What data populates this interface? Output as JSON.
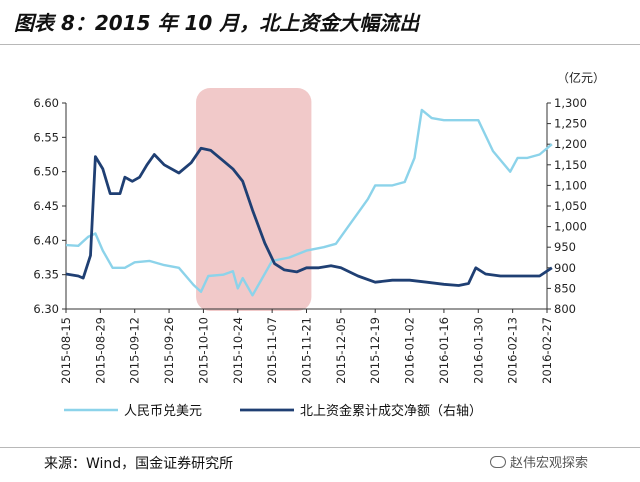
{
  "header": {
    "title": "图表 8：2015 年 10 月，北上资金大幅流出"
  },
  "footer": {
    "source": "来源：Wind，国金证券研究所",
    "watermark": "赵伟宏观探索"
  },
  "colors": {
    "left_series": "#8cd3ea",
    "right_series": "#1f3f73",
    "shade": "#eebcbc",
    "axis": "#333333"
  },
  "chart_data": {
    "type": "line",
    "title": "",
    "highlight_region": {
      "x_start": "2015-10-07",
      "x_end": "2015-11-23"
    },
    "y_left": {
      "ticks": [
        "6.60",
        "6.55",
        "6.50",
        "6.45",
        "6.40",
        "6.35",
        "6.30"
      ],
      "min": 6.3,
      "max": 6.6
    },
    "y_right": {
      "unit": "（亿元）",
      "ticks": [
        "1,300",
        "1,250",
        "1,200",
        "1,150",
        "1,100",
        "1,050",
        "1,000",
        "950",
        "900",
        "850",
        "800"
      ],
      "min": 800,
      "max": 1300
    },
    "x_ticks": [
      "2015-08-15",
      "2015-08-29",
      "2015-09-12",
      "2015-09-26",
      "2015-10-10",
      "2015-10-24",
      "2015-11-07",
      "2015-11-21",
      "2015-12-05",
      "2015-12-19",
      "2016-01-02",
      "2016-01-16",
      "2016-01-30",
      "2016-02-13",
      "2016-02-27"
    ],
    "legend": [
      "人民币兑美元",
      "北上资金累计成交净额（右轴）"
    ],
    "series": [
      {
        "name": "人民币兑美元",
        "axis": "left",
        "points": [
          [
            "2015-08-15",
            6.393
          ],
          [
            "2015-08-20",
            6.392
          ],
          [
            "2015-08-24",
            6.405
          ],
          [
            "2015-08-27",
            6.41
          ],
          [
            "2015-08-30",
            6.385
          ],
          [
            "2015-09-03",
            6.36
          ],
          [
            "2015-09-08",
            6.36
          ],
          [
            "2015-09-12",
            6.368
          ],
          [
            "2015-09-18",
            6.37
          ],
          [
            "2015-09-24",
            6.364
          ],
          [
            "2015-09-30",
            6.36
          ],
          [
            "2015-10-06",
            6.335
          ],
          [
            "2015-10-09",
            6.325
          ],
          [
            "2015-10-12",
            6.348
          ],
          [
            "2015-10-18",
            6.35
          ],
          [
            "2015-10-22",
            6.355
          ],
          [
            "2015-10-24",
            6.33
          ],
          [
            "2015-10-26",
            6.345
          ],
          [
            "2015-10-30",
            6.32
          ],
          [
            "2015-11-03",
            6.345
          ],
          [
            "2015-11-07",
            6.37
          ],
          [
            "2015-11-14",
            6.375
          ],
          [
            "2015-11-21",
            6.385
          ],
          [
            "2015-11-28",
            6.39
          ],
          [
            "2015-12-03",
            6.395
          ],
          [
            "2015-12-08",
            6.42
          ],
          [
            "2015-12-12",
            6.44
          ],
          [
            "2015-12-16",
            6.46
          ],
          [
            "2015-12-19",
            6.48
          ],
          [
            "2015-12-26",
            6.48
          ],
          [
            "2015-12-31",
            6.485
          ],
          [
            "2016-01-04",
            6.52
          ],
          [
            "2016-01-07",
            6.59
          ],
          [
            "2016-01-11",
            6.578
          ],
          [
            "2016-01-16",
            6.575
          ],
          [
            "2016-01-22",
            6.575
          ],
          [
            "2016-01-27",
            6.575
          ],
          [
            "2016-01-30",
            6.575
          ],
          [
            "2016-02-05",
            6.53
          ],
          [
            "2016-02-12",
            6.5
          ],
          [
            "2016-02-15",
            6.52
          ],
          [
            "2016-02-19",
            6.52
          ],
          [
            "2016-02-24",
            6.525
          ],
          [
            "2016-02-29",
            6.54
          ]
        ]
      },
      {
        "name": "北上资金累计成交净额（右轴）",
        "axis": "right",
        "points": [
          [
            "2015-08-15",
            885
          ],
          [
            "2015-08-20",
            880
          ],
          [
            "2015-08-22",
            875
          ],
          [
            "2015-08-25",
            930
          ],
          [
            "2015-08-27",
            1170
          ],
          [
            "2015-08-30",
            1140
          ],
          [
            "2015-09-02",
            1080
          ],
          [
            "2015-09-06",
            1080
          ],
          [
            "2015-09-08",
            1120
          ],
          [
            "2015-09-11",
            1110
          ],
          [
            "2015-09-14",
            1120
          ],
          [
            "2015-09-17",
            1150
          ],
          [
            "2015-09-20",
            1175
          ],
          [
            "2015-09-24",
            1150
          ],
          [
            "2015-09-30",
            1130
          ],
          [
            "2015-10-05",
            1155
          ],
          [
            "2015-10-09",
            1190
          ],
          [
            "2015-10-13",
            1185
          ],
          [
            "2015-10-18",
            1160
          ],
          [
            "2015-10-22",
            1140
          ],
          [
            "2015-10-26",
            1110
          ],
          [
            "2015-10-30",
            1040
          ],
          [
            "2015-11-04",
            960
          ],
          [
            "2015-11-08",
            910
          ],
          [
            "2015-11-12",
            895
          ],
          [
            "2015-11-17",
            890
          ],
          [
            "2015-11-21",
            900
          ],
          [
            "2015-11-26",
            900
          ],
          [
            "2015-12-01",
            905
          ],
          [
            "2015-12-05",
            900
          ],
          [
            "2015-12-12",
            880
          ],
          [
            "2015-12-19",
            865
          ],
          [
            "2015-12-26",
            870
          ],
          [
            "2016-01-02",
            870
          ],
          [
            "2016-01-09",
            865
          ],
          [
            "2016-01-16",
            860
          ],
          [
            "2016-01-22",
            857
          ],
          [
            "2016-01-26",
            862
          ],
          [
            "2016-01-29",
            900
          ],
          [
            "2016-02-02",
            885
          ],
          [
            "2016-02-08",
            880
          ],
          [
            "2016-02-14",
            880
          ],
          [
            "2016-02-21",
            880
          ],
          [
            "2016-02-24",
            880
          ],
          [
            "2016-02-29",
            900
          ]
        ]
      }
    ]
  }
}
